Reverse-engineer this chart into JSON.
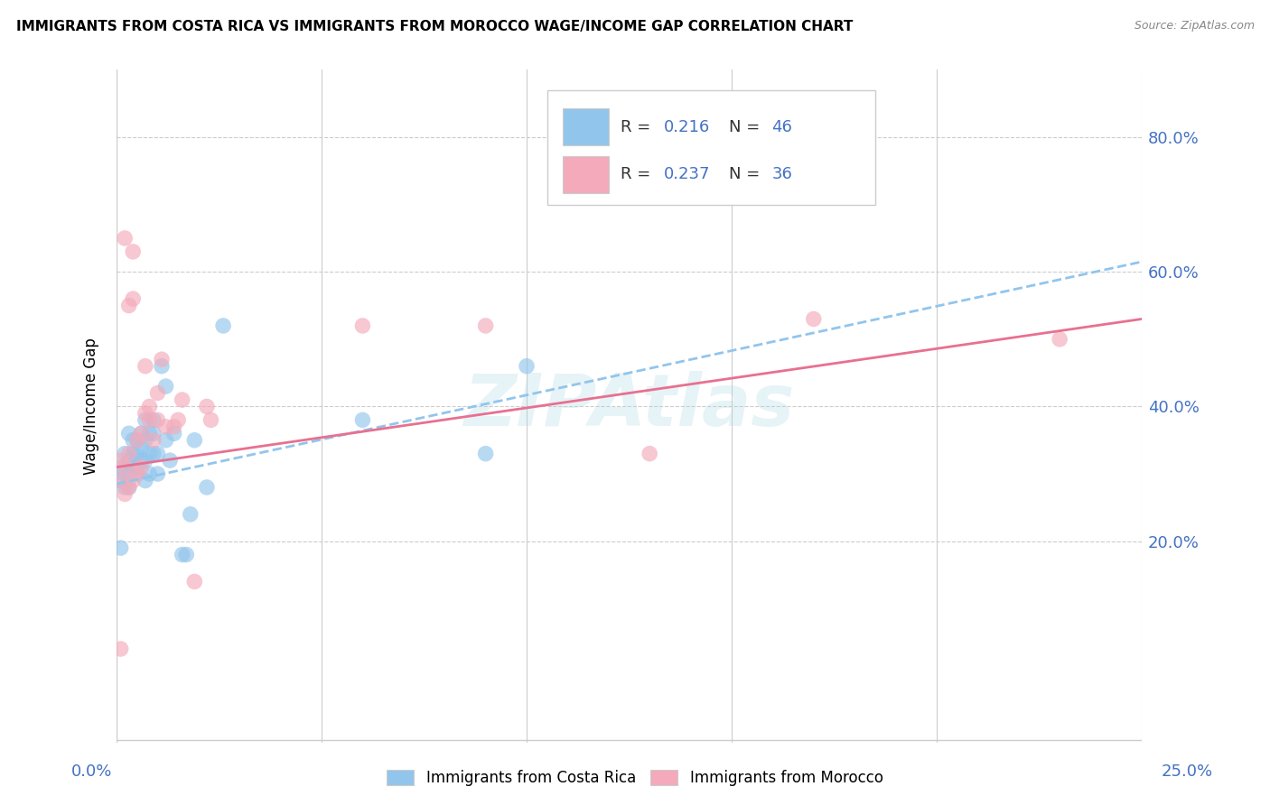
{
  "title": "IMMIGRANTS FROM COSTA RICA VS IMMIGRANTS FROM MOROCCO WAGE/INCOME GAP CORRELATION CHART",
  "source": "Source: ZipAtlas.com",
  "ylabel": "Wage/Income Gap",
  "yticks": [
    0.2,
    0.4,
    0.6,
    0.8
  ],
  "ytick_labels": [
    "20.0%",
    "40.0%",
    "60.0%",
    "80.0%"
  ],
  "xmin": 0.0,
  "xmax": 0.25,
  "ymin": -0.1,
  "ymax": 0.9,
  "watermark": "ZIPAtlas",
  "color_blue": "#92C5EC",
  "color_pink": "#F4AABA",
  "color_blue_line": "#92C5EC",
  "color_pink_line": "#E87090",
  "legend_label1": "Immigrants from Costa Rica",
  "legend_label2": "Immigrants from Morocco",
  "blue_scatter_x": [
    0.001,
    0.001,
    0.001,
    0.002,
    0.002,
    0.002,
    0.003,
    0.003,
    0.003,
    0.003,
    0.004,
    0.004,
    0.004,
    0.005,
    0.005,
    0.005,
    0.005,
    0.006,
    0.006,
    0.006,
    0.007,
    0.007,
    0.007,
    0.007,
    0.008,
    0.008,
    0.008,
    0.009,
    0.009,
    0.009,
    0.01,
    0.01,
    0.011,
    0.012,
    0.012,
    0.013,
    0.014,
    0.016,
    0.017,
    0.018,
    0.019,
    0.022,
    0.026,
    0.06,
    0.09,
    0.1
  ],
  "blue_scatter_y": [
    0.19,
    0.29,
    0.31,
    0.28,
    0.3,
    0.33,
    0.28,
    0.3,
    0.32,
    0.36,
    0.31,
    0.33,
    0.35,
    0.3,
    0.31,
    0.33,
    0.35,
    0.32,
    0.34,
    0.36,
    0.29,
    0.32,
    0.35,
    0.38,
    0.3,
    0.33,
    0.36,
    0.33,
    0.36,
    0.38,
    0.3,
    0.33,
    0.46,
    0.35,
    0.43,
    0.32,
    0.36,
    0.18,
    0.18,
    0.24,
    0.35,
    0.28,
    0.52,
    0.38,
    0.33,
    0.46
  ],
  "pink_scatter_x": [
    0.001,
    0.001,
    0.001,
    0.002,
    0.002,
    0.002,
    0.003,
    0.003,
    0.003,
    0.004,
    0.004,
    0.004,
    0.005,
    0.005,
    0.006,
    0.006,
    0.007,
    0.007,
    0.008,
    0.008,
    0.009,
    0.01,
    0.01,
    0.011,
    0.012,
    0.014,
    0.015,
    0.016,
    0.019,
    0.022,
    0.023,
    0.06,
    0.09,
    0.13,
    0.17,
    0.23
  ],
  "pink_scatter_y": [
    0.04,
    0.29,
    0.32,
    0.27,
    0.31,
    0.65,
    0.55,
    0.28,
    0.33,
    0.29,
    0.56,
    0.63,
    0.3,
    0.35,
    0.31,
    0.36,
    0.39,
    0.46,
    0.38,
    0.4,
    0.35,
    0.38,
    0.42,
    0.47,
    0.37,
    0.37,
    0.38,
    0.41,
    0.14,
    0.4,
    0.38,
    0.52,
    0.52,
    0.33,
    0.53,
    0.5
  ],
  "blue_line_x": [
    0.0,
    0.25
  ],
  "blue_line_y": [
    0.285,
    0.615
  ],
  "pink_line_x": [
    0.0,
    0.25
  ],
  "pink_line_y": [
    0.31,
    0.53
  ]
}
